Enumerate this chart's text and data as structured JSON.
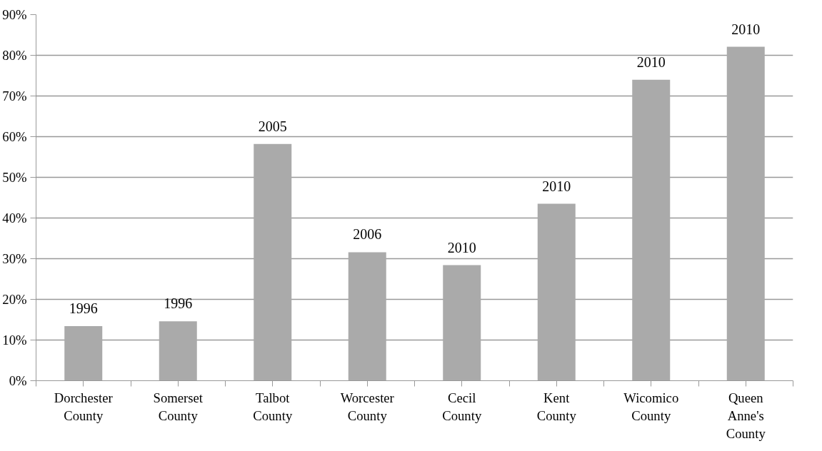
{
  "chart_data": {
    "type": "bar",
    "categories": [
      "Dorchester County",
      "Somerset County",
      "Talbot County",
      "Worcester County",
      "Cecil County",
      "Kent County",
      "Wicomico County",
      "Queen Anne's County"
    ],
    "values": [
      13.4,
      14.6,
      58.2,
      31.6,
      28.4,
      43.5,
      74.0,
      82.1
    ],
    "annotations": [
      {
        "text": "1996",
        "x": "Dorchester County",
        "y": 13.4
      },
      {
        "text": "1996",
        "x": "Somerset County",
        "y": 14.6
      },
      {
        "text": "2005",
        "x": "Talbot County",
        "y": 58.2
      },
      {
        "text": "2006",
        "x": "Worcester County",
        "y": 31.6
      },
      {
        "text": "2010",
        "x": "Cecil County",
        "y": 28.4
      },
      {
        "text": "2010",
        "x": "Kent County",
        "y": 43.5
      },
      {
        "text": "2010",
        "x": "Wicomico County",
        "y": 74.0
      },
      {
        "text": "2010",
        "x": "Queen Anne's County",
        "y": 82.1
      }
    ],
    "color": "#aaaaaa",
    "ylim": [
      0,
      90
    ],
    "yticks": [
      {
        "value": 0,
        "label": "0%"
      },
      {
        "value": 10,
        "label": "10%"
      },
      {
        "value": 20,
        "label": "20%"
      },
      {
        "value": 30,
        "label": "30%"
      },
      {
        "value": 40,
        "label": "40%"
      },
      {
        "value": 50,
        "label": "50%"
      },
      {
        "value": 60,
        "label": "60%"
      },
      {
        "value": 70,
        "label": "70%"
      },
      {
        "value": 80,
        "label": "80%"
      },
      {
        "value": 90,
        "label": "90%"
      }
    ],
    "grid": "y"
  }
}
